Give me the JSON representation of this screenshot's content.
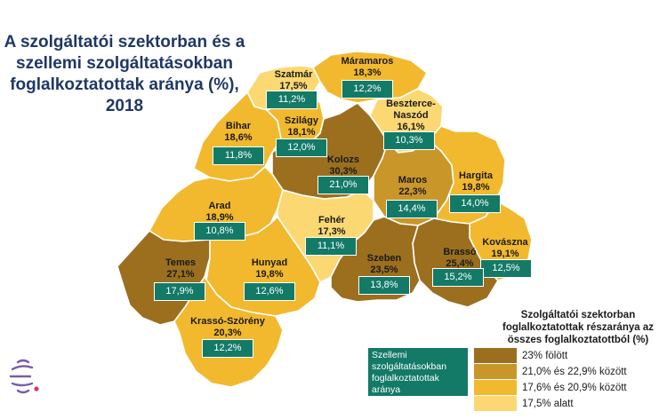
{
  "title": {
    "lines": [
      "A szolgáltatói szektorban és a",
      "szellemi szolgáltatásokban",
      "foglalkoztatottak aránya (%),",
      "2018"
    ]
  },
  "colors": {
    "cat1": "#9b6f1e",
    "cat2": "#c9962a",
    "cat3": "#f2b92e",
    "cat4": "#fcd873",
    "box": "#137a67",
    "title": "#1f3864"
  },
  "counties": [
    {
      "name": "Szatmár",
      "pct": "17,5%",
      "intel": "11,2%",
      "category": 4
    },
    {
      "name": "Máramaros",
      "pct": "18,3%",
      "intel": "12,2%",
      "category": 3
    },
    {
      "name": "Bihar",
      "pct": "18,6%",
      "intel": "11,8%",
      "category": 3
    },
    {
      "name": "Szilágy",
      "pct": "18,1%",
      "intel": "12,0%",
      "category": 3
    },
    {
      "name_lines": [
        "Beszterce-",
        "Naszód"
      ],
      "pct": "16,1%",
      "intel": "10,3%",
      "category": 4
    },
    {
      "name": "Kolozs",
      "pct": "30,3%",
      "intel": "21,0%",
      "category": 1
    },
    {
      "name": "Maros",
      "pct": "22,3%",
      "intel": "14,4%",
      "category": 2
    },
    {
      "name": "Hargita",
      "pct": "19,8%",
      "intel": "14,0%",
      "category": 3
    },
    {
      "name": "Arad",
      "pct": "18,9%",
      "intel": "10,8%",
      "category": 3
    },
    {
      "name": "Fehér",
      "pct": "17,3%",
      "intel": "11,1%",
      "category": 4
    },
    {
      "name": "Kovászna",
      "pct": "19,1%",
      "intel": "12,5%",
      "category": 3
    },
    {
      "name": "Brassó",
      "pct": "25,4%",
      "intel": "15,2%",
      "category": 1
    },
    {
      "name": "Szeben",
      "pct": "23,5%",
      "intel": "13,8%",
      "category": 1
    },
    {
      "name": "Temes",
      "pct": "27,1%",
      "intel": "17,9%",
      "category": 1
    },
    {
      "name": "Hunyad",
      "pct": "19,8%",
      "intel": "12,6%",
      "category": 3
    },
    {
      "name": "Krassó-Szörény",
      "pct": "20,3%",
      "intel": "12,2%",
      "category": 3
    }
  ],
  "legend": {
    "title_lines": [
      "Szolgáltatói szektorban",
      "foglalkoztatottak részaránya az",
      "összes foglalkoztatottból (%)"
    ],
    "green_box_lines": [
      "Szellemi",
      "szolgáltatásokban",
      "foglalkoztatottak",
      "aránya"
    ],
    "items": [
      {
        "label": "23% fölött",
        "color": "#9b6f1e"
      },
      {
        "label": "21,0% és 22,9% között",
        "color": "#c9962a"
      },
      {
        "label": "17,6% és 20,9% között",
        "color": "#f2b92e"
      },
      {
        "label": "17,5% alatt",
        "color": "#fcd873"
      }
    ]
  }
}
